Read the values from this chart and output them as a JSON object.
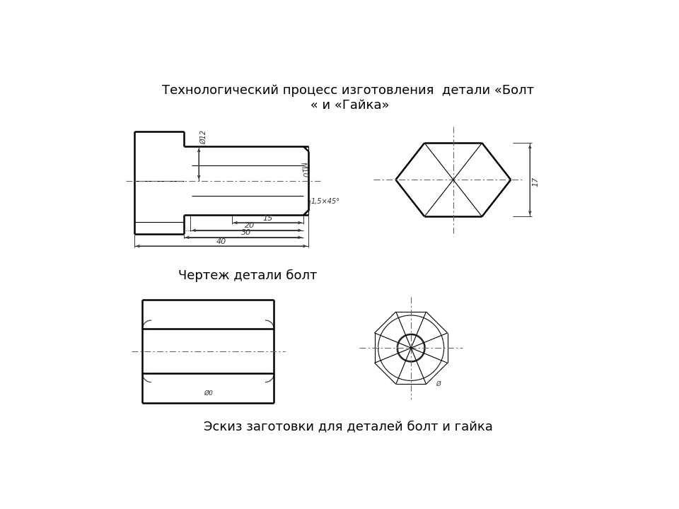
{
  "title": "Технологический процесс изготовления  детали «Болт\n « и «Гайка»",
  "label1": "Чертеж детали болт",
  "label2": "Эскиз заготовки для деталей болт и гайка",
  "bg_color": "#ffffff",
  "line_color": "#000000",
  "centerline_color": "#666666",
  "dim_color": "#333333"
}
